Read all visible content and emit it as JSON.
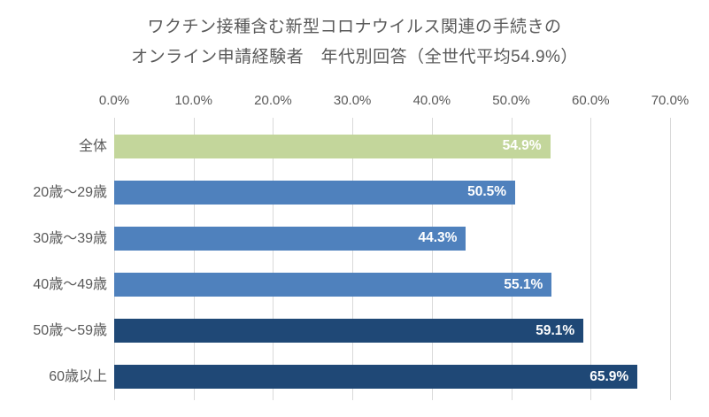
{
  "chart_data": {
    "type": "bar",
    "orientation": "horizontal",
    "title_line1": "ワクチン接種含む新型コロナウイルス関連の手続きの",
    "title_line2": "オンライン申請経験者　年代別回答（全世代平均54.9%）",
    "categories": [
      "全体",
      "20歳〜29歳",
      "30歳〜39歳",
      "40歳〜49歳",
      "50歳〜59歳",
      "60歳以上"
    ],
    "values": [
      54.9,
      50.5,
      44.3,
      55.1,
      59.1,
      65.9
    ],
    "value_labels": [
      "54.9%",
      "50.5%",
      "44.3%",
      "55.1%",
      "59.1%",
      "65.9%"
    ],
    "bar_colors": [
      "#C3D69B",
      "#4F81BD",
      "#4F81BD",
      "#4F81BD",
      "#1F4876",
      "#1F4876"
    ],
    "x_ticks": [
      "0.0%",
      "10.0%",
      "20.0%",
      "30.0%",
      "40.0%",
      "50.0%",
      "60.0%",
      "70.0%"
    ],
    "xlim": [
      0,
      70
    ],
    "xlabel": "",
    "ylabel": "",
    "grid": true,
    "axis_position": "top",
    "legend": "none",
    "value_label_color": "#FFFFFF",
    "text_color": "#595959",
    "gridline_color": "#D9D9D9",
    "background_color": "#FFFFFF"
  }
}
